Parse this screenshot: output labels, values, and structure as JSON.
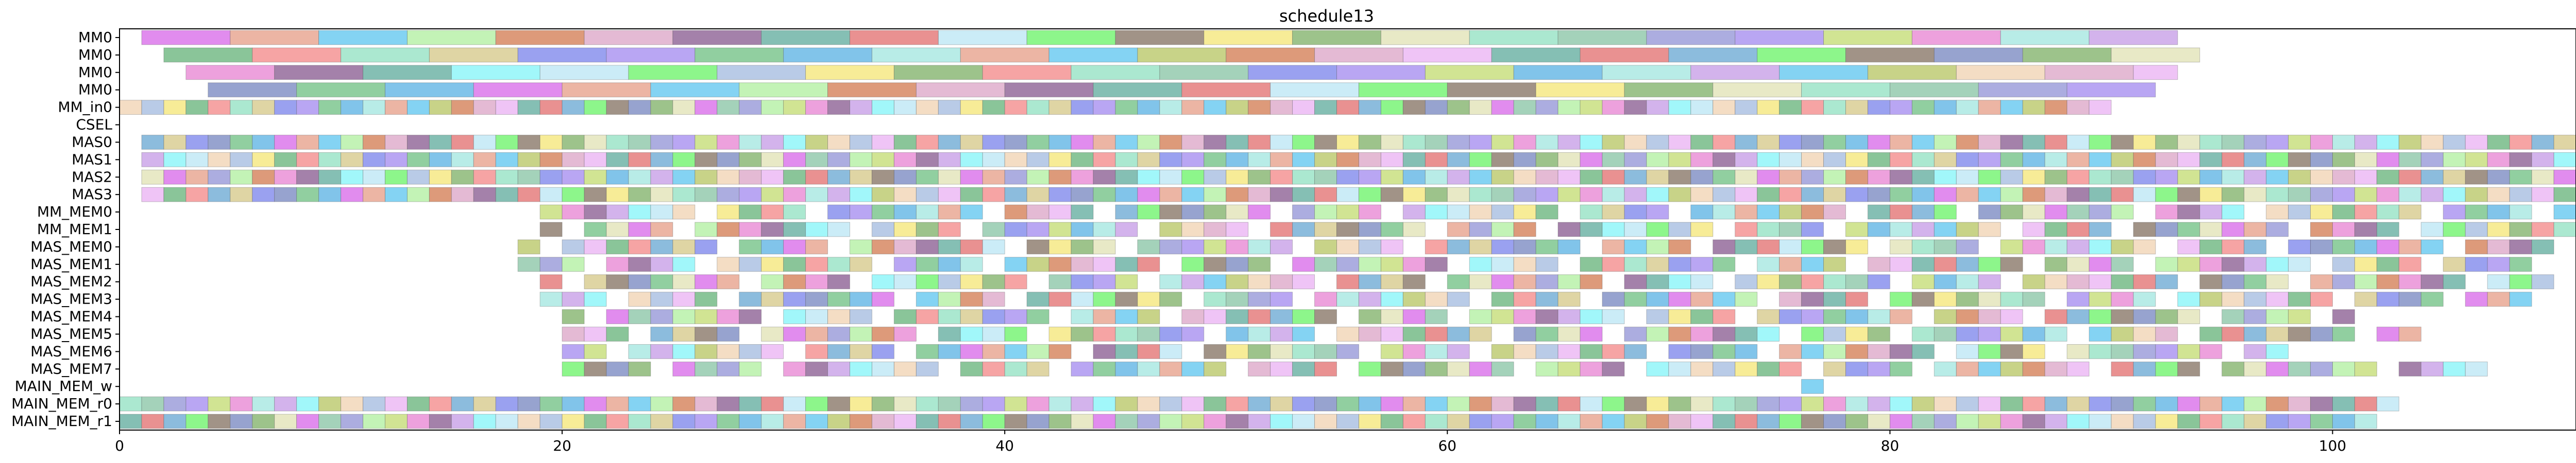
{
  "chart_data": {
    "type": "gantt",
    "title": "schedule13",
    "xlabel": "",
    "ylabel": "",
    "xlim": [
      0,
      111
    ],
    "xticks": [
      0,
      20,
      40,
      60,
      80,
      100
    ],
    "grid": false,
    "legend": "none",
    "rows": [
      "MM0",
      "MM0",
      "MM0",
      "MM0",
      "MM_in0",
      "CSEL",
      "MAS0",
      "MAS1",
      "MAS2",
      "MAS3",
      "MM_MEM0",
      "MM_MEM1",
      "MAS_MEM0",
      "MAS_MEM1",
      "MAS_MEM2",
      "MAS_MEM3",
      "MAS_MEM4",
      "MAS_MEM5",
      "MAS_MEM6",
      "MAS_MEM7",
      "MAIN_MEM_w",
      "MAIN_MEM_r0",
      "MAIN_MEM_r1"
    ],
    "row_spans": [
      {
        "start": 1,
        "end": 93,
        "duration": 4
      },
      {
        "start": 2,
        "end": 94,
        "duration": 4
      },
      {
        "start": 3,
        "end": 93,
        "duration": 4
      },
      {
        "start": 4,
        "end": 92,
        "duration": 4
      },
      {
        "start": 0,
        "end": 90,
        "duration": 1
      },
      {
        "start": 0,
        "end": 0,
        "duration": 1
      },
      {
        "start": 1,
        "end": 111,
        "duration": 1
      },
      {
        "start": 1,
        "end": 111,
        "duration": 1
      },
      {
        "start": 1,
        "end": 111,
        "duration": 1
      },
      {
        "start": 1,
        "end": 111,
        "duration": 1
      },
      {
        "start": 19,
        "end": 111,
        "duration": 1
      },
      {
        "start": 19,
        "end": 111,
        "duration": 1
      },
      {
        "start": 18,
        "end": 110,
        "duration": 1
      },
      {
        "start": 18,
        "end": 109,
        "duration": 1
      },
      {
        "start": 19,
        "end": 110,
        "duration": 1
      },
      {
        "start": 19,
        "end": 109,
        "duration": 1
      },
      {
        "start": 20,
        "end": 101,
        "duration": 1
      },
      {
        "start": 20,
        "end": 104,
        "duration": 1
      },
      {
        "start": 20,
        "end": 98,
        "duration": 1
      },
      {
        "start": 20,
        "end": 107,
        "duration": 1
      },
      {
        "start": 76,
        "end": 77,
        "duration": 1
      },
      {
        "start": 0,
        "end": 103,
        "duration": 1
      },
      {
        "start": 0,
        "end": 102,
        "duration": 1
      }
    ],
    "palette": [
      "#d96be9",
      "#72c285",
      "#7e87ec",
      "#93e2c3",
      "#82b26a",
      "#867565",
      "#6ba9d3",
      "#69b57c",
      "#a5bde0",
      "#bde7f5",
      "#63ad9f",
      "#dca6c8",
      "#b8c767",
      "#c69ee7",
      "#e887d3",
      "#b2f0a2",
      "#e7a08a",
      "#5eb4e4",
      "#a58df0",
      "#8bc5a6",
      "#e1e3b6",
      "#7a89c2",
      "#d6c98a",
      "#f38a8a",
      "#f5e77a",
      "#6df46a",
      "#e37272",
      "#ebb4f4",
      "#f1d3b3",
      "#86f5f8",
      "#8b5d92",
      "#d47d54",
      "#62c6ef",
      "#a4e7e0",
      "#c4dd74",
      "#9596d7"
    ]
  }
}
